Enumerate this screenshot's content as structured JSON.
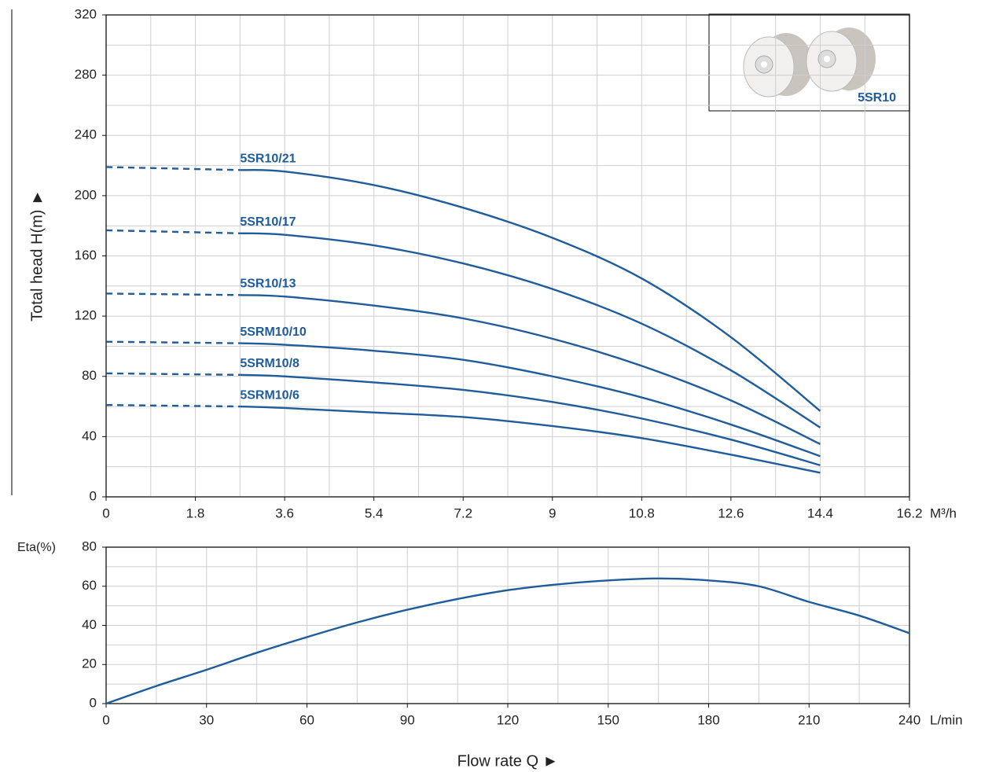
{
  "chart_data": [
    {
      "type": "line",
      "ylabel": "Total head H(m) ►",
      "x_unit": "M³/h",
      "inset_label": "5SR10",
      "x": [
        0,
        2.7,
        3.6,
        5.4,
        7.2,
        9,
        10.8,
        12.6,
        14.4
      ],
      "dashed_points": 2,
      "series": [
        {
          "name": "5SR10/21",
          "color": "#1f5c9b",
          "values": [
            219,
            217,
            216,
            207,
            192,
            172,
            145,
            106,
            57
          ]
        },
        {
          "name": "5SR10/17",
          "color": "#1f5c9b",
          "values": [
            177,
            175,
            174,
            167,
            155,
            138,
            115,
            84,
            46
          ]
        },
        {
          "name": "5SR10/13",
          "color": "#1f5c9b",
          "values": [
            135,
            134,
            133,
            127,
            118.5,
            105,
            87,
            64,
            35
          ]
        },
        {
          "name": "5SRM10/10",
          "color": "#1f5c9b",
          "values": [
            103,
            102,
            101,
            97,
            91,
            80,
            66,
            48,
            27
          ]
        },
        {
          "name": "5SRM10/8",
          "color": "#1f5c9b",
          "values": [
            82,
            81,
            80,
            76,
            71,
            63,
            52,
            38,
            21
          ]
        },
        {
          "name": "5SRM10/6",
          "color": "#1f5c9b",
          "values": [
            61,
            60,
            59,
            56,
            53,
            47,
            39,
            28,
            16
          ]
        }
      ],
      "xlim": [
        0,
        16.2
      ],
      "ylim": [
        0,
        320
      ],
      "xticks": [
        0,
        1.8,
        3.6,
        5.4,
        7.2,
        9,
        10.8,
        12.6,
        14.4,
        16.2
      ],
      "yticks": [
        0,
        40,
        80,
        120,
        160,
        200,
        240,
        280,
        320
      ],
      "xgrid": [
        0.9,
        1.8,
        2.7,
        3.6,
        4.5,
        5.4,
        6.3,
        7.2,
        8.1,
        9,
        9.9,
        10.8,
        11.7,
        12.6,
        13.5,
        14.4,
        15.3
      ],
      "ygrid": [
        20,
        40,
        60,
        80,
        100,
        120,
        140,
        160,
        180,
        200,
        220,
        240,
        260,
        280,
        300
      ]
    },
    {
      "type": "line",
      "ylabel": "Eta(%)",
      "x_unit": "L/min",
      "xlabel": "Flow rate Q ►",
      "x": [
        0,
        15,
        30,
        45,
        60,
        75,
        90,
        105,
        120,
        135,
        150,
        165,
        180,
        195,
        210,
        225,
        240
      ],
      "color": "#1f5c9b",
      "values": [
        0,
        9,
        17.3,
        26,
        34,
        41.5,
        48,
        53.5,
        58,
        61,
        63,
        64,
        63,
        60,
        52,
        45,
        36
      ],
      "xlim": [
        0,
        240
      ],
      "ylim": [
        0,
        80
      ],
      "xticks": [
        0,
        30,
        60,
        90,
        120,
        150,
        180,
        210,
        240
      ],
      "yticks": [
        0,
        20,
        40,
        60,
        80
      ],
      "xgrid": [
        15,
        30,
        45,
        60,
        75,
        90,
        105,
        120,
        135,
        150,
        165,
        180,
        195,
        210,
        225
      ],
      "ygrid": [
        10,
        20,
        30,
        40,
        50,
        60,
        70
      ]
    }
  ]
}
